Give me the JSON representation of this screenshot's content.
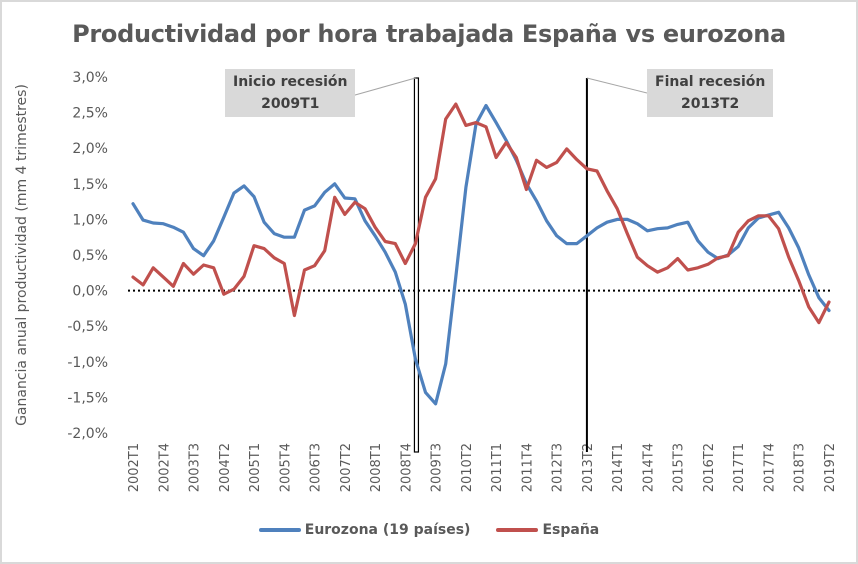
{
  "chart_data": {
    "type": "line",
    "title": "Productividad por hora trabajada España vs eurozona",
    "xlabel": "",
    "ylabel": "Ganancia anual productividad (mm 4 trimestres)",
    "ylim": [
      -2.0,
      3.0
    ],
    "yticks": [
      3.0,
      2.5,
      2.0,
      1.5,
      1.0,
      0.5,
      0.0,
      -0.5,
      -1.0,
      -1.5,
      -2.0
    ],
    "ytick_labels": [
      "3,0%",
      "2,5%",
      "2,0%",
      "1,5%",
      "1,0%",
      "0,5%",
      "0,0%",
      "-0,5%",
      "-1,0%",
      "-1,5%",
      "-2,0%"
    ],
    "grid": false,
    "zero_line": "dotted",
    "legend_position": "bottom",
    "x_start": "2002T1",
    "x_end": "2019T2",
    "xtick_labels": [
      "2002T1",
      "2002T4",
      "2003T3",
      "2004T2",
      "2005T1",
      "2005T4",
      "2006T3",
      "2007T2",
      "2008T1",
      "2008T4",
      "2009T3",
      "2010T2",
      "2011T1",
      "2011T4",
      "2012T3",
      "2013T2",
      "2014T1",
      "2014T4",
      "2015T3",
      "2016T2",
      "2017T1",
      "2017T4",
      "2018T3",
      "2019T2"
    ],
    "series": [
      {
        "name": "Eurozona (19 países)",
        "color": "#4f81bd",
        "values": [
          1.22,
          0.99,
          0.95,
          0.94,
          0.89,
          0.82,
          0.59,
          0.49,
          0.7,
          1.03,
          1.37,
          1.47,
          1.32,
          0.96,
          0.8,
          0.75,
          0.75,
          1.13,
          1.19,
          1.38,
          1.5,
          1.3,
          1.29,
          0.98,
          0.77,
          0.54,
          0.26,
          -0.19,
          -0.96,
          -1.43,
          -1.59,
          -1.03,
          0.19,
          1.45,
          2.34,
          2.6,
          2.36,
          2.11,
          1.83,
          1.5,
          1.26,
          0.98,
          0.77,
          0.66,
          0.66,
          0.77,
          0.88,
          0.96,
          1.0,
          1.0,
          0.94,
          0.84,
          0.87,
          0.88,
          0.93,
          0.96,
          0.7,
          0.54,
          0.45,
          0.5,
          0.62,
          0.88,
          1.02,
          1.06,
          1.1,
          0.88,
          0.6,
          0.22,
          -0.1,
          -0.28
        ]
      },
      {
        "name": "España",
        "color": "#c0504d",
        "values": [
          0.19,
          0.08,
          0.32,
          0.19,
          0.06,
          0.38,
          0.23,
          0.36,
          0.32,
          -0.05,
          0.02,
          0.2,
          0.63,
          0.59,
          0.46,
          0.38,
          -0.35,
          0.29,
          0.35,
          0.56,
          1.31,
          1.07,
          1.24,
          1.15,
          0.89,
          0.69,
          0.66,
          0.38,
          0.66,
          1.31,
          1.57,
          2.41,
          2.62,
          2.32,
          2.36,
          2.3,
          1.87,
          2.08,
          1.87,
          1.42,
          1.83,
          1.73,
          1.8,
          1.99,
          1.84,
          1.71,
          1.68,
          1.4,
          1.15,
          0.8,
          0.47,
          0.35,
          0.26,
          0.32,
          0.45,
          0.29,
          0.32,
          0.37,
          0.46,
          0.49,
          0.82,
          0.98,
          1.05,
          1.05,
          0.87,
          0.47,
          0.14,
          -0.23,
          -0.45,
          -0.16
        ]
      }
    ],
    "annotations": [
      {
        "label_line1": "Inicio recesión",
        "label_line2": "2009T1",
        "quarter": "2009T1",
        "style": "double"
      },
      {
        "label_line1": "Final recesión",
        "label_line2": "2013T2",
        "quarter": "2013T2",
        "style": "single"
      }
    ]
  }
}
